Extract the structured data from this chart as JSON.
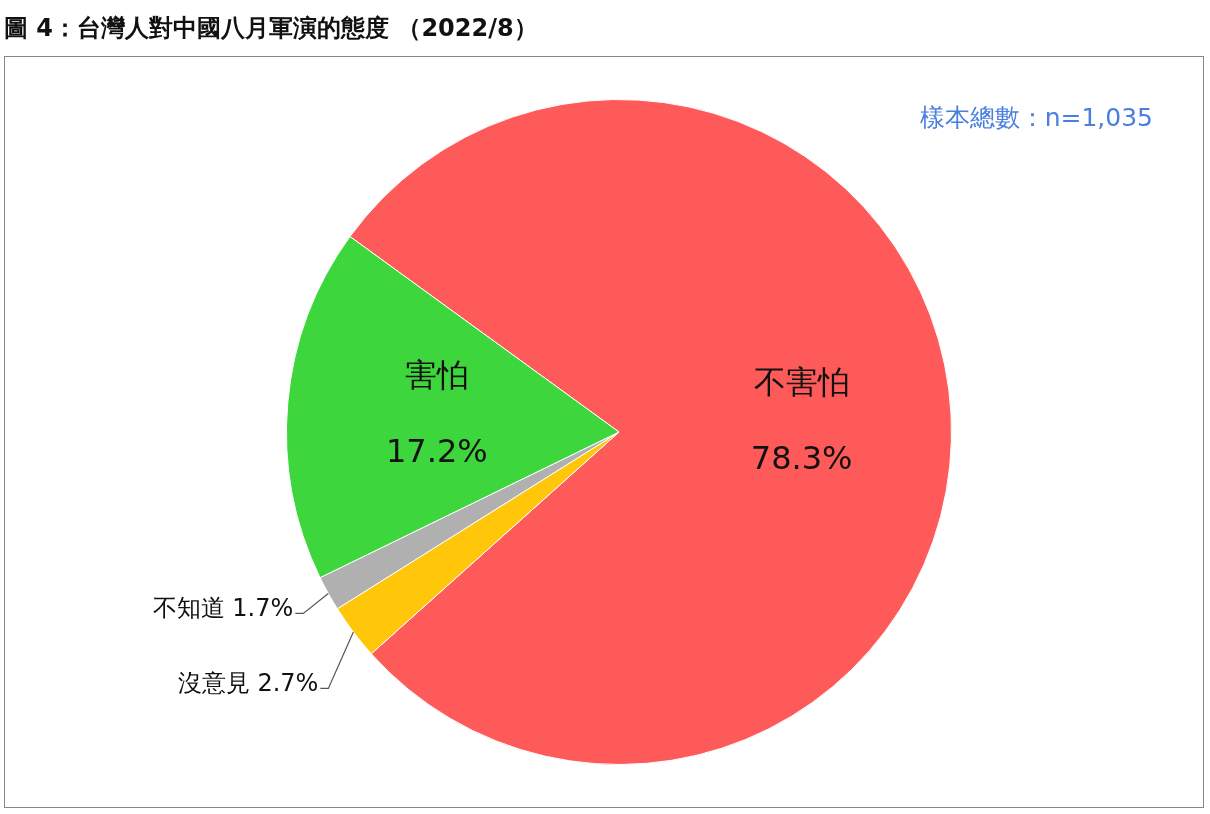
{
  "chart_data": {
    "type": "pie",
    "title": "圖 4：台灣人對中國八月軍演的態度 （2022/8）",
    "categories": [
      "不害怕",
      "沒意見",
      "不知道",
      "害怕"
    ],
    "values": [
      78.3,
      2.7,
      1.7,
      17.2
    ],
    "value_labels": [
      "78.3%",
      "2.7%",
      "1.7%",
      "17.2%"
    ],
    "colors": [
      "#ff5a5a",
      "#ffc60a",
      "#b0b0b0",
      "#3dd63d"
    ],
    "annotations": [
      "樣本總數：n=1,035"
    ],
    "legend": false
  }
}
